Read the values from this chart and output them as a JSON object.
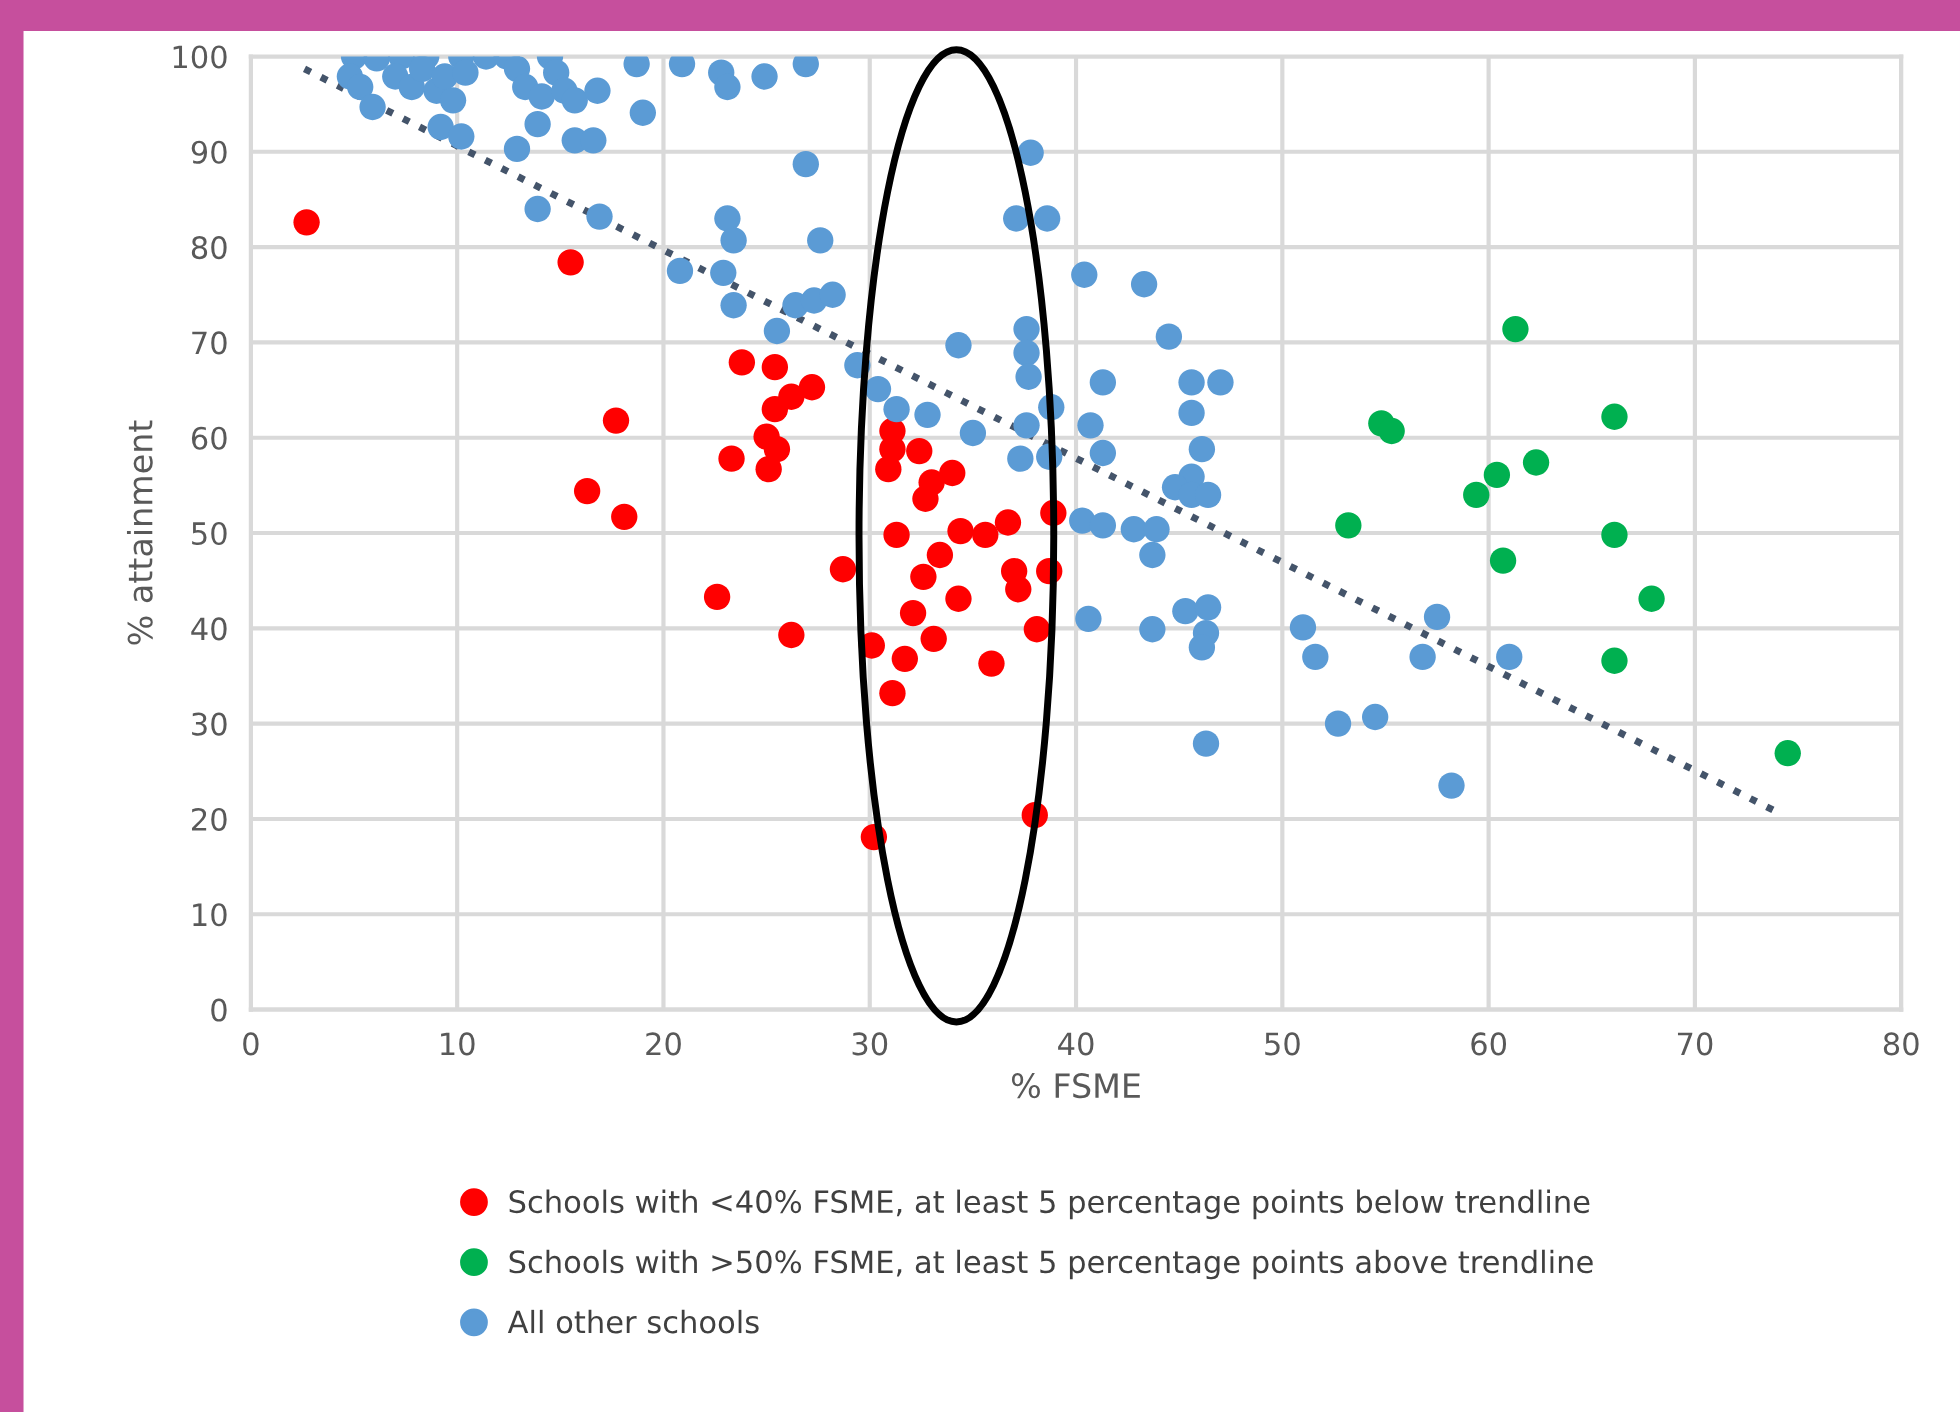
{
  "chart_data": {
    "type": "scatter",
    "xlabel": "% FSME",
    "ylabel": "% attainment",
    "xlim": [
      0,
      80
    ],
    "ylim": [
      0,
      100
    ],
    "xticks": [
      0,
      10,
      20,
      30,
      40,
      50,
      60,
      70,
      80
    ],
    "yticks": [
      0,
      10,
      20,
      30,
      40,
      50,
      60,
      70,
      80,
      90,
      100
    ],
    "grid": true,
    "legend": "bottom",
    "marker": "circle",
    "series": [
      {
        "name": "Schools with <40% FSME, at least 5 percentage points below trendline",
        "color": "#ff0000",
        "x": [
          2.7,
          15.5,
          17.7,
          16.3,
          18.1,
          23.8,
          25.4,
          27.2,
          26.2,
          25.4,
          23.3,
          25.0,
          25.5,
          25.1,
          22.6,
          26.2,
          28.7,
          30.1,
          30.2,
          31.1,
          31.1,
          30.9,
          32.4,
          33.0,
          32.7,
          34.0,
          31.3,
          33.4,
          34.4,
          35.6,
          36.7,
          32.6,
          32.1,
          31.7,
          31.1,
          33.1,
          34.3,
          37.0,
          37.2,
          38.9,
          38.7,
          38.1,
          35.9,
          38.0
        ],
        "values": [
          82.6,
          78.4,
          61.8,
          54.4,
          51.7,
          67.9,
          67.4,
          65.3,
          64.3,
          63.0,
          57.8,
          60.1,
          58.8,
          56.7,
          43.3,
          39.3,
          46.2,
          38.2,
          18.1,
          60.7,
          58.8,
          56.7,
          58.6,
          55.3,
          53.6,
          56.3,
          49.8,
          47.7,
          50.2,
          49.8,
          51.1,
          45.4,
          41.6,
          36.8,
          33.2,
          38.9,
          43.1,
          46.0,
          44.1,
          52.1,
          46.0,
          39.9,
          36.3,
          20.4
        ]
      },
      {
        "name": "Schools with >50% FSME, at least 5 percentage points above trendline",
        "color": "#00b050",
        "x": [
          61.3,
          54.8,
          55.3,
          66.1,
          62.3,
          60.4,
          59.4,
          53.2,
          66.1,
          60.7,
          67.9,
          66.1,
          74.5
        ],
        "values": [
          71.4,
          61.5,
          60.7,
          62.2,
          57.4,
          56.1,
          54.0,
          50.8,
          49.8,
          47.1,
          43.1,
          36.6,
          26.9
        ]
      },
      {
        "name": "All other schools",
        "color": "#5b9bd5",
        "x": [
          5.0,
          6.1,
          4.8,
          5.3,
          7.3,
          8.5,
          7.0,
          7.8,
          8.3,
          9.0,
          9.4,
          9.8,
          10.2,
          10.4,
          11.4,
          12.4,
          12.9,
          13.3,
          14.1,
          14.5,
          14.8,
          15.2,
          15.7,
          13.9,
          15.7,
          16.6,
          16.8,
          5.9,
          9.2,
          10.2,
          12.9,
          13.9,
          16.9,
          18.7,
          19.0,
          20.9,
          22.8,
          23.1,
          24.9,
          26.9,
          26.9,
          20.8,
          23.1,
          23.4,
          22.9,
          23.4,
          25.5,
          26.4,
          27.3,
          27.6,
          28.2,
          29.4,
          30.4,
          31.3,
          32.8,
          34.3,
          35.0,
          37.8,
          37.1,
          38.6,
          37.6,
          37.6,
          37.7,
          38.8,
          37.6,
          37.3,
          38.7,
          40.4,
          41.3,
          40.7,
          41.3,
          43.3,
          44.5,
          45.6,
          46.1,
          45.6,
          44.8,
          45.6,
          46.4,
          47.0,
          45.6,
          40.3,
          41.3,
          42.8,
          43.9,
          43.7,
          40.6,
          43.7,
          45.3,
          46.4,
          46.3,
          46.1,
          46.3,
          51.0,
          51.6,
          52.7,
          54.5,
          57.5,
          56.8,
          61.0,
          58.2
        ],
        "values": [
          100,
          99.8,
          97.9,
          96.8,
          100,
          100,
          97.9,
          96.8,
          98.7,
          96.4,
          97.9,
          95.4,
          100,
          98.3,
          100,
          100,
          98.7,
          96.8,
          95.8,
          100,
          98.3,
          96.4,
          95.4,
          92.9,
          91.2,
          91.2,
          96.4,
          94.7,
          92.6,
          91.6,
          90.3,
          84.0,
          83.2,
          99.2,
          94.1,
          99.2,
          98.3,
          96.8,
          97.9,
          99.2,
          88.7,
          77.5,
          83.0,
          80.7,
          77.3,
          73.9,
          71.2,
          73.9,
          74.4,
          80.7,
          75.0,
          67.6,
          65.1,
          63.0,
          62.4,
          69.7,
          60.5,
          89.9,
          83.0,
          83.0,
          71.4,
          68.9,
          66.4,
          63.2,
          61.3,
          57.8,
          58.0,
          77.1,
          65.8,
          61.3,
          58.4,
          76.1,
          70.6,
          65.8,
          58.8,
          55.9,
          54.8,
          54.0,
          54.0,
          65.8,
          62.6,
          51.3,
          50.8,
          50.4,
          50.4,
          47.7,
          41.0,
          39.9,
          41.8,
          42.2,
          39.5,
          38.0,
          27.9,
          40.1,
          37.0,
          30.0,
          30.7,
          41.2,
          37.0,
          37.0,
          23.5
        ]
      },
      {
        "type": "line",
        "color": "#44546a",
        "line_style": "dotted",
        "marker": "none",
        "x": [
          2.6,
          74.1
        ],
        "values": [
          98.7,
          20.6
        ]
      }
    ]
  }
}
